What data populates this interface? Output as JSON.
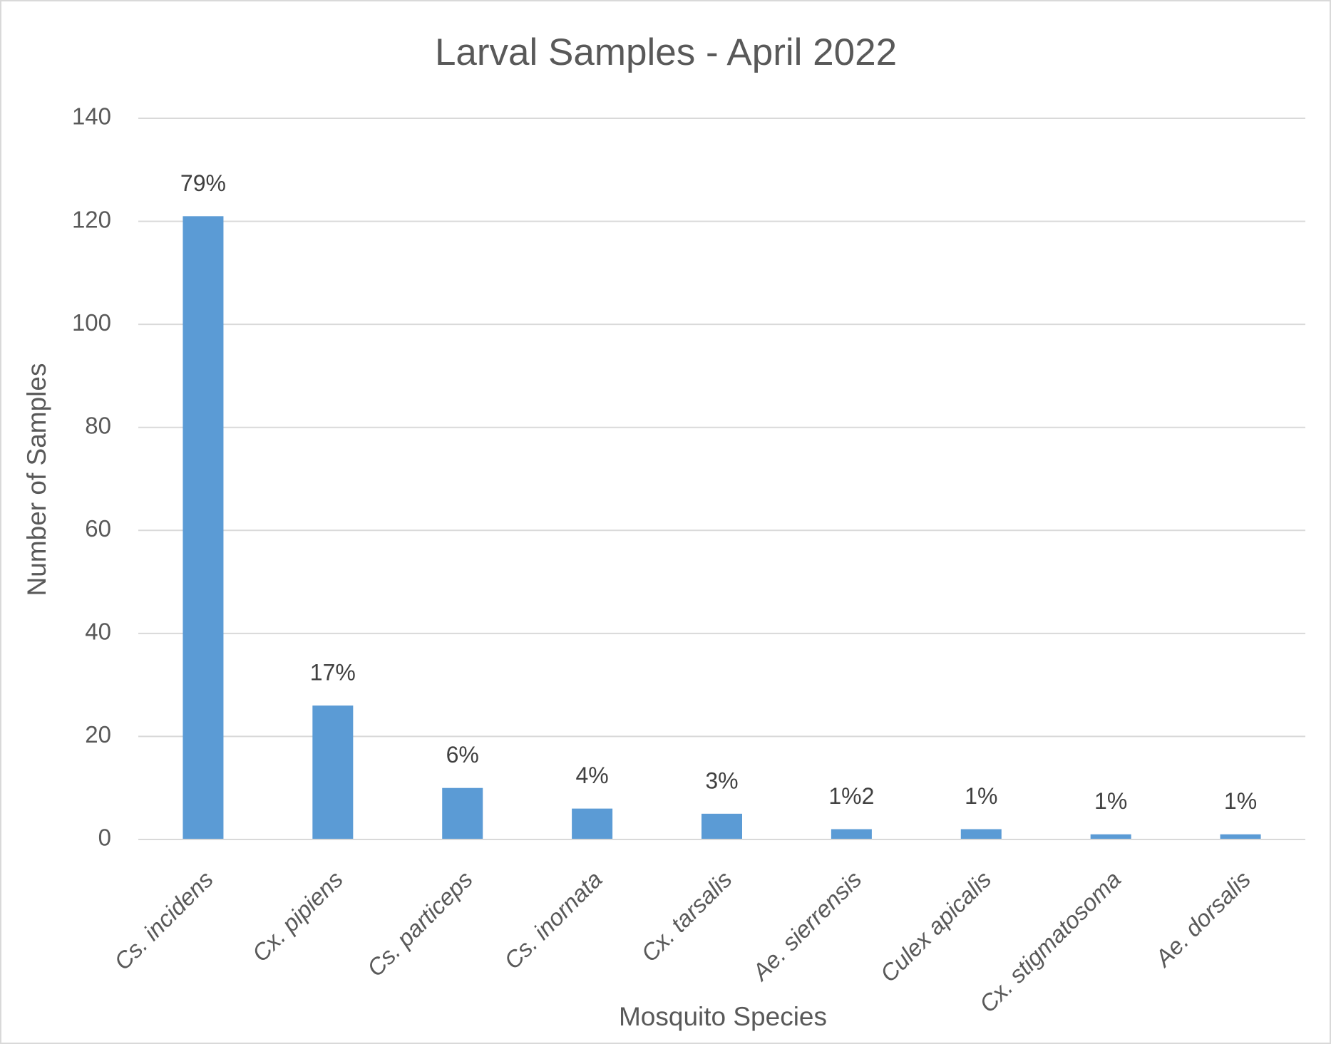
{
  "chart_data": {
    "type": "bar",
    "title": "Larval Samples - April 2022",
    "x_label": "Mosquito Species",
    "y_label": "Number of Samples",
    "categories": [
      "Cs. incidens",
      "Cx. pipiens",
      "Cs. particeps",
      "Cs. inornata",
      "Cx. tarsalis",
      "Ae. sierrensis",
      "Culex apicalis",
      "Cx. stigmatosoma",
      "Ae. dorsalis"
    ],
    "values": [
      121,
      26,
      10,
      6,
      5,
      2,
      2,
      1,
      1
    ],
    "percent_labels": [
      "79%",
      "17%",
      "6%",
      "4%",
      "3%",
      "1%2",
      "1%",
      "1%",
      "1%"
    ],
    "color": "#5b9bd5",
    "ylim": [
      0,
      140
    ],
    "yticks": [
      0,
      20,
      40,
      60,
      80,
      100,
      120,
      140
    ],
    "grid": true
  }
}
